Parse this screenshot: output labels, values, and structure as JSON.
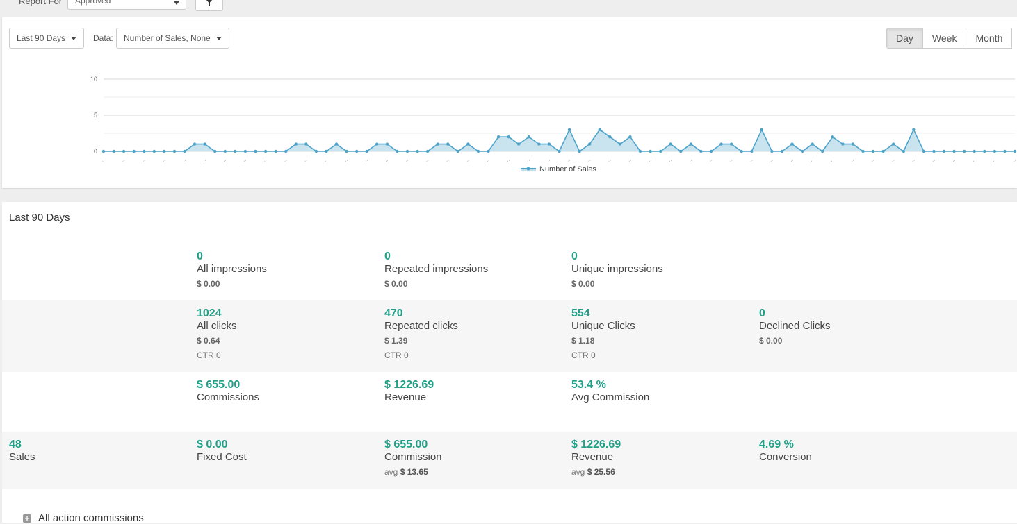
{
  "top": {
    "report_for_label": "Report For",
    "report_for_value": "Approved"
  },
  "controls": {
    "range_label": "Last 90 Days",
    "data_label": "Data:",
    "data_value": "Number of Sales, None",
    "granularity": [
      "Day",
      "Week",
      "Month"
    ],
    "granularity_selected": "Day"
  },
  "chart_data": {
    "type": "area",
    "series": [
      {
        "name": "Number of Sales",
        "values": [
          0,
          0,
          0,
          0,
          0,
          0,
          0,
          0,
          0,
          1,
          1,
          0,
          0,
          0,
          0,
          0,
          0,
          0,
          0,
          1,
          1,
          0,
          0,
          1,
          0,
          0,
          0,
          1,
          1,
          0,
          0,
          0,
          0,
          1,
          1,
          0,
          1,
          0,
          0,
          2,
          2,
          1,
          2,
          1,
          1,
          0,
          3,
          0,
          1,
          3,
          2,
          1,
          2,
          0,
          0,
          0,
          1,
          0,
          1,
          0,
          0,
          1,
          1,
          0,
          0,
          3,
          0,
          0,
          1,
          0,
          1,
          0,
          2,
          1,
          1,
          0,
          0,
          0,
          1,
          0,
          3,
          0,
          0,
          0,
          0,
          0,
          0,
          0,
          0,
          0,
          0
        ]
      }
    ],
    "yticks": [
      0,
      5,
      10
    ],
    "ylim": [
      0,
      10
    ],
    "xtick_label": "..",
    "legend": "bottom-center",
    "color": "#4da3c9"
  },
  "stats": {
    "title": "Last 90 Days",
    "impressions": [
      {
        "value": "0",
        "label": "All impressions",
        "amount": "$ 0.00"
      },
      {
        "value": "0",
        "label": "Repeated impressions",
        "amount": "$ 0.00"
      },
      {
        "value": "0",
        "label": "Unique impressions",
        "amount": "$ 0.00"
      }
    ],
    "clicks": [
      {
        "value": "1024",
        "label": "All clicks",
        "amount": "$ 0.64",
        "ctr": "CTR 0"
      },
      {
        "value": "470",
        "label": "Repeated clicks",
        "amount": "$ 1.39",
        "ctr": "CTR 0"
      },
      {
        "value": "554",
        "label": "Unique Clicks",
        "amount": "$ 1.18",
        "ctr": "CTR 0"
      },
      {
        "value": "0",
        "label": "Declined Clicks",
        "amount": "$ 0.00"
      }
    ],
    "commissions": [
      {
        "value": "$ 655.00",
        "label": "Commissions"
      },
      {
        "value": "$ 1226.69",
        "label": "Revenue"
      },
      {
        "value": "53.4 %",
        "label": "Avg Commission"
      }
    ],
    "sales": [
      {
        "value": "48",
        "label": "Sales"
      },
      {
        "value": "$ 0.00",
        "label": "Fixed Cost"
      },
      {
        "value": "$ 655.00",
        "label": "Commission",
        "avg_prefix": "avg",
        "avg": "$ 13.65"
      },
      {
        "value": "$ 1226.69",
        "label": "Revenue",
        "avg_prefix": "avg",
        "avg": "$ 25.56"
      },
      {
        "value": "4.69 %",
        "label": "Conversion"
      }
    ],
    "expander_label": "All action commissions"
  }
}
